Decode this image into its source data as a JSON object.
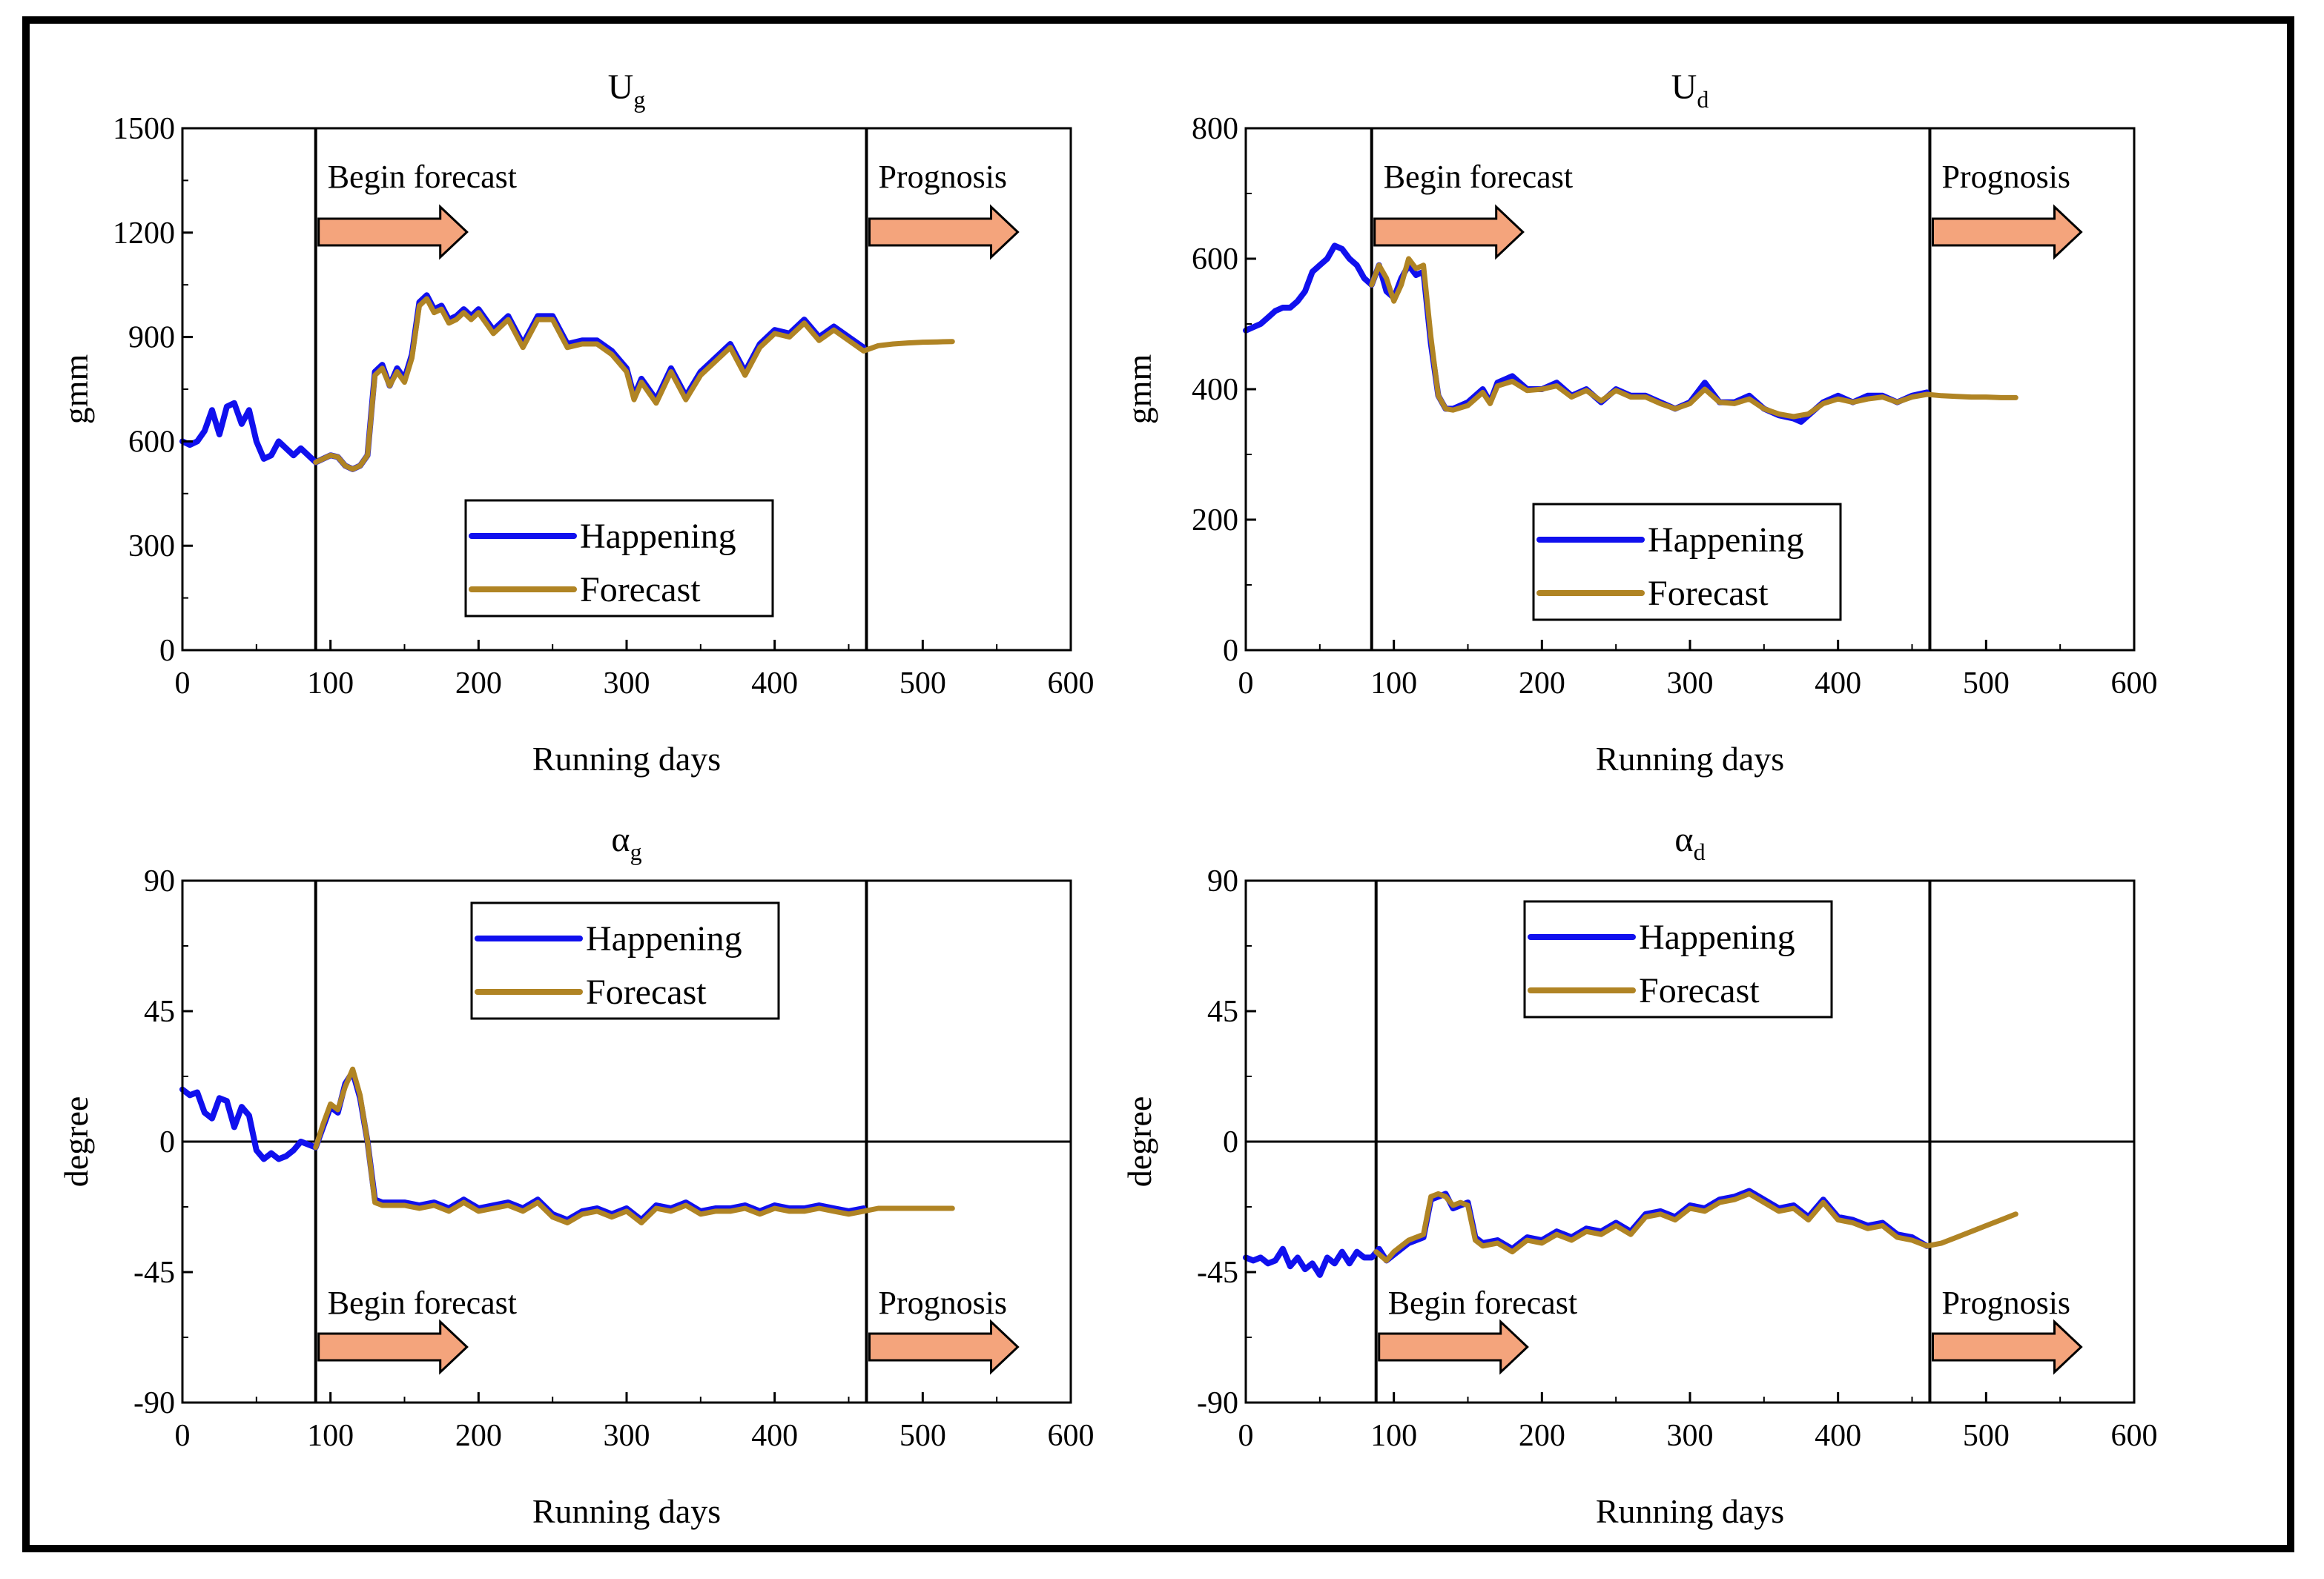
{
  "colors": {
    "happening": "#1010ee",
    "forecast": "#b08424",
    "arrow_fill": "#f4a47c",
    "arrow_stroke": "#000000"
  },
  "legend": {
    "happening": "Happening",
    "forecast": "Forecast"
  },
  "chart_data": [
    {
      "type": "line",
      "title": "U",
      "title_sub": "g",
      "xlabel": "Running days",
      "ylabel": "gmm",
      "xlim": [
        0,
        600
      ],
      "ylim": [
        0,
        1500
      ],
      "xticks": [
        0,
        100,
        200,
        300,
        400,
        500,
        600
      ],
      "yticks": [
        0,
        300,
        600,
        900,
        1200,
        1500
      ],
      "begin_forecast_day": 90,
      "prognosis_day": 462,
      "annotation_begin": "Begin forecast",
      "annotation_prognosis": "Prognosis",
      "zero_line": false,
      "series": [
        {
          "name": "Happening",
          "key": "happening",
          "x": [
            0,
            5,
            10,
            15,
            20,
            25,
            30,
            35,
            40,
            45,
            50,
            55,
            60,
            65,
            70,
            75,
            80,
            85,
            90,
            95,
            100,
            105,
            110,
            115,
            120,
            125,
            130,
            135,
            140,
            145,
            150,
            155,
            160,
            165,
            170,
            175,
            180,
            185,
            190,
            195,
            200,
            210,
            220,
            230,
            240,
            250,
            260,
            270,
            280,
            290,
            300,
            305,
            310,
            320,
            330,
            340,
            350,
            360,
            370,
            380,
            390,
            400,
            410,
            420,
            430,
            440,
            450,
            460
          ],
          "y": [
            600,
            590,
            600,
            630,
            690,
            620,
            700,
            710,
            650,
            690,
            600,
            550,
            560,
            600,
            580,
            560,
            580,
            560,
            540,
            550,
            560,
            555,
            530,
            520,
            530,
            560,
            800,
            820,
            760,
            810,
            780,
            850,
            1000,
            1020,
            980,
            990,
            950,
            960,
            980,
            960,
            980,
            920,
            960,
            880,
            960,
            960,
            880,
            890,
            890,
            860,
            810,
            730,
            780,
            720,
            810,
            730,
            800,
            840,
            880,
            800,
            880,
            920,
            910,
            950,
            900,
            930,
            900,
            870
          ]
        },
        {
          "name": "Forecast",
          "key": "forecast",
          "x": [
            90,
            95,
            100,
            105,
            110,
            115,
            120,
            125,
            130,
            135,
            140,
            145,
            150,
            155,
            160,
            165,
            170,
            175,
            180,
            185,
            190,
            195,
            200,
            210,
            220,
            230,
            240,
            250,
            260,
            270,
            280,
            290,
            300,
            305,
            310,
            320,
            330,
            340,
            350,
            360,
            370,
            380,
            390,
            400,
            410,
            420,
            430,
            440,
            450,
            460,
            470,
            480,
            490,
            500,
            510,
            520
          ],
          "y": [
            540,
            550,
            560,
            555,
            530,
            520,
            530,
            560,
            790,
            810,
            760,
            800,
            770,
            840,
            990,
            1010,
            970,
            980,
            940,
            950,
            970,
            950,
            970,
            910,
            950,
            870,
            950,
            950,
            870,
            880,
            880,
            850,
            800,
            720,
            770,
            710,
            800,
            720,
            790,
            830,
            870,
            790,
            870,
            910,
            900,
            940,
            890,
            920,
            890,
            860,
            875,
            880,
            883,
            885,
            886,
            887
          ]
        }
      ]
    },
    {
      "type": "line",
      "title": "U",
      "title_sub": "d",
      "xlabel": "Running days",
      "ylabel": "gmm",
      "xlim": [
        0,
        600
      ],
      "ylim": [
        0,
        800
      ],
      "xticks": [
        0,
        100,
        200,
        300,
        400,
        500,
        600
      ],
      "yticks": [
        0,
        200,
        400,
        600,
        800
      ],
      "begin_forecast_day": 85,
      "prognosis_day": 462,
      "annotation_begin": "Begin forecast",
      "annotation_prognosis": "Prognosis",
      "zero_line": false,
      "series": [
        {
          "name": "Happening",
          "key": "happening",
          "x": [
            0,
            5,
            10,
            15,
            20,
            25,
            30,
            35,
            40,
            45,
            50,
            55,
            60,
            65,
            70,
            75,
            80,
            85,
            90,
            95,
            100,
            105,
            110,
            115,
            120,
            125,
            130,
            135,
            140,
            150,
            160,
            165,
            170,
            180,
            190,
            200,
            210,
            220,
            230,
            240,
            250,
            260,
            270,
            280,
            290,
            300,
            310,
            320,
            330,
            340,
            350,
            360,
            370,
            375,
            380,
            390,
            400,
            410,
            420,
            430,
            440,
            450,
            460
          ],
          "y": [
            490,
            495,
            500,
            510,
            520,
            525,
            525,
            535,
            550,
            580,
            590,
            600,
            620,
            615,
            600,
            590,
            570,
            560,
            590,
            550,
            540,
            570,
            590,
            575,
            580,
            470,
            390,
            370,
            370,
            380,
            400,
            380,
            410,
            420,
            400,
            400,
            410,
            390,
            400,
            380,
            400,
            390,
            390,
            380,
            370,
            380,
            410,
            380,
            380,
            390,
            370,
            360,
            355,
            350,
            360,
            380,
            390,
            380,
            390,
            390,
            380,
            390,
            395
          ]
        },
        {
          "name": "Forecast",
          "key": "forecast",
          "x": [
            85,
            90,
            95,
            100,
            105,
            110,
            115,
            120,
            125,
            130,
            135,
            140,
            150,
            160,
            165,
            170,
            180,
            190,
            200,
            210,
            220,
            230,
            240,
            250,
            260,
            270,
            280,
            290,
            300,
            310,
            320,
            330,
            340,
            350,
            360,
            370,
            375,
            380,
            390,
            400,
            410,
            420,
            430,
            440,
            450,
            460,
            470,
            480,
            490,
            500,
            510,
            520
          ],
          "y": [
            560,
            590,
            570,
            535,
            560,
            600,
            585,
            590,
            480,
            390,
            370,
            368,
            375,
            395,
            378,
            405,
            412,
            398,
            400,
            405,
            388,
            398,
            382,
            398,
            388,
            388,
            378,
            370,
            378,
            400,
            380,
            378,
            385,
            370,
            362,
            358,
            360,
            362,
            378,
            385,
            380,
            385,
            388,
            380,
            388,
            392,
            390,
            389,
            388,
            388,
            387,
            387
          ]
        }
      ]
    },
    {
      "type": "line",
      "title": "α",
      "title_sub": "g",
      "xlabel": "Running days",
      "ylabel": "degree",
      "xlim": [
        0,
        600
      ],
      "ylim": [
        -90,
        90
      ],
      "xticks": [
        0,
        100,
        200,
        300,
        400,
        500,
        600
      ],
      "yticks": [
        -90,
        -45,
        0,
        45,
        90
      ],
      "begin_forecast_day": 90,
      "prognosis_day": 462,
      "annotation_begin": "Begin forecast",
      "annotation_prognosis": "Prognosis",
      "zero_line": true,
      "series": [
        {
          "name": "Happening",
          "key": "happening",
          "x": [
            0,
            5,
            10,
            15,
            20,
            25,
            30,
            35,
            40,
            45,
            50,
            55,
            60,
            65,
            70,
            75,
            80,
            85,
            90,
            95,
            100,
            105,
            110,
            115,
            120,
            125,
            130,
            135,
            140,
            150,
            160,
            170,
            180,
            190,
            200,
            210,
            220,
            230,
            240,
            250,
            260,
            270,
            280,
            290,
            300,
            310,
            320,
            330,
            340,
            350,
            360,
            370,
            380,
            390,
            400,
            410,
            420,
            430,
            440,
            450,
            460
          ],
          "y": [
            18,
            16,
            17,
            10,
            8,
            15,
            14,
            5,
            12,
            9,
            -3,
            -6,
            -4,
            -6,
            -5,
            -3,
            0,
            -1,
            -2,
            5,
            12,
            10,
            20,
            24,
            15,
            0,
            -20,
            -21,
            -21,
            -21,
            -22,
            -21,
            -23,
            -20,
            -23,
            -22,
            -21,
            -23,
            -20,
            -25,
            -27,
            -24,
            -23,
            -25,
            -23,
            -27,
            -22,
            -23,
            -21,
            -24,
            -23,
            -23,
            -22,
            -24,
            -22,
            -23,
            -23,
            -22,
            -23,
            -24,
            -23
          ]
        },
        {
          "name": "Forecast",
          "key": "forecast",
          "x": [
            90,
            95,
            100,
            105,
            110,
            115,
            120,
            125,
            130,
            135,
            140,
            150,
            160,
            170,
            180,
            190,
            200,
            210,
            220,
            230,
            240,
            250,
            260,
            270,
            280,
            290,
            300,
            310,
            320,
            330,
            340,
            350,
            360,
            370,
            380,
            390,
            400,
            410,
            420,
            430,
            440,
            450,
            460,
            470,
            480,
            490,
            500,
            510,
            520
          ],
          "y": [
            -2,
            6,
            13,
            11,
            19,
            25,
            16,
            0,
            -21,
            -22,
            -22,
            -22,
            -23,
            -22,
            -24,
            -21,
            -24,
            -23,
            -22,
            -24,
            -21,
            -26,
            -28,
            -25,
            -24,
            -26,
            -24,
            -28,
            -23,
            -24,
            -22,
            -25,
            -24,
            -24,
            -23,
            -25,
            -23,
            -24,
            -24,
            -23,
            -24,
            -25,
            -24,
            -23,
            -23,
            -23,
            -23,
            -23,
            -23
          ]
        }
      ]
    },
    {
      "type": "line",
      "title": "α",
      "title_sub": "d",
      "xlabel": "Running days",
      "ylabel": "degree",
      "xlim": [
        0,
        600
      ],
      "ylim": [
        -90,
        90
      ],
      "xticks": [
        0,
        100,
        200,
        300,
        400,
        500,
        600
      ],
      "yticks": [
        -90,
        -45,
        0,
        45,
        90
      ],
      "begin_forecast_day": 88,
      "prognosis_day": 462,
      "annotation_begin": "Begin forecast",
      "annotation_prognosis": "Prognosis",
      "zero_line": true,
      "series": [
        {
          "name": "Happening",
          "key": "happening",
          "x": [
            0,
            5,
            10,
            15,
            20,
            25,
            30,
            35,
            40,
            45,
            50,
            55,
            60,
            65,
            70,
            75,
            80,
            85,
            90,
            95,
            100,
            110,
            120,
            125,
            130,
            135,
            140,
            145,
            150,
            155,
            160,
            170,
            180,
            190,
            200,
            210,
            220,
            230,
            240,
            250,
            260,
            270,
            280,
            290,
            300,
            310,
            320,
            330,
            340,
            350,
            360,
            370,
            380,
            390,
            400,
            410,
            420,
            430,
            440,
            450,
            460
          ],
          "y": [
            -40,
            -41,
            -40,
            -42,
            -41,
            -37,
            -43,
            -40,
            -44,
            -42,
            -46,
            -40,
            -42,
            -38,
            -42,
            -38,
            -40,
            -40,
            -37,
            -41,
            -39,
            -35,
            -33,
            -20,
            -19,
            -18,
            -23,
            -22,
            -21,
            -33,
            -35,
            -34,
            -37,
            -33,
            -34,
            -31,
            -33,
            -30,
            -31,
            -28,
            -31,
            -25,
            -24,
            -26,
            -22,
            -23,
            -20,
            -19,
            -17,
            -20,
            -23,
            -22,
            -26,
            -20,
            -26,
            -27,
            -29,
            -28,
            -32,
            -33,
            -36
          ]
        },
        {
          "name": "Forecast",
          "key": "forecast",
          "x": [
            88,
            95,
            100,
            110,
            120,
            125,
            130,
            135,
            140,
            145,
            150,
            155,
            160,
            170,
            180,
            190,
            200,
            210,
            220,
            230,
            240,
            250,
            260,
            270,
            280,
            290,
            300,
            310,
            320,
            330,
            340,
            350,
            360,
            370,
            380,
            390,
            400,
            410,
            420,
            430,
            440,
            450,
            460,
            470,
            480,
            490,
            500,
            510,
            520
          ],
          "y": [
            -38,
            -41,
            -38,
            -34,
            -32,
            -19,
            -18,
            -19,
            -22,
            -21,
            -22,
            -34,
            -36,
            -35,
            -38,
            -34,
            -35,
            -32,
            -34,
            -31,
            -32,
            -29,
            -32,
            -26,
            -25,
            -27,
            -23,
            -24,
            -21,
            -20,
            -18,
            -21,
            -24,
            -23,
            -27,
            -21,
            -27,
            -28,
            -30,
            -29,
            -33,
            -34,
            -36,
            -35,
            -33,
            -31,
            -29,
            -27,
            -25
          ]
        }
      ]
    }
  ]
}
